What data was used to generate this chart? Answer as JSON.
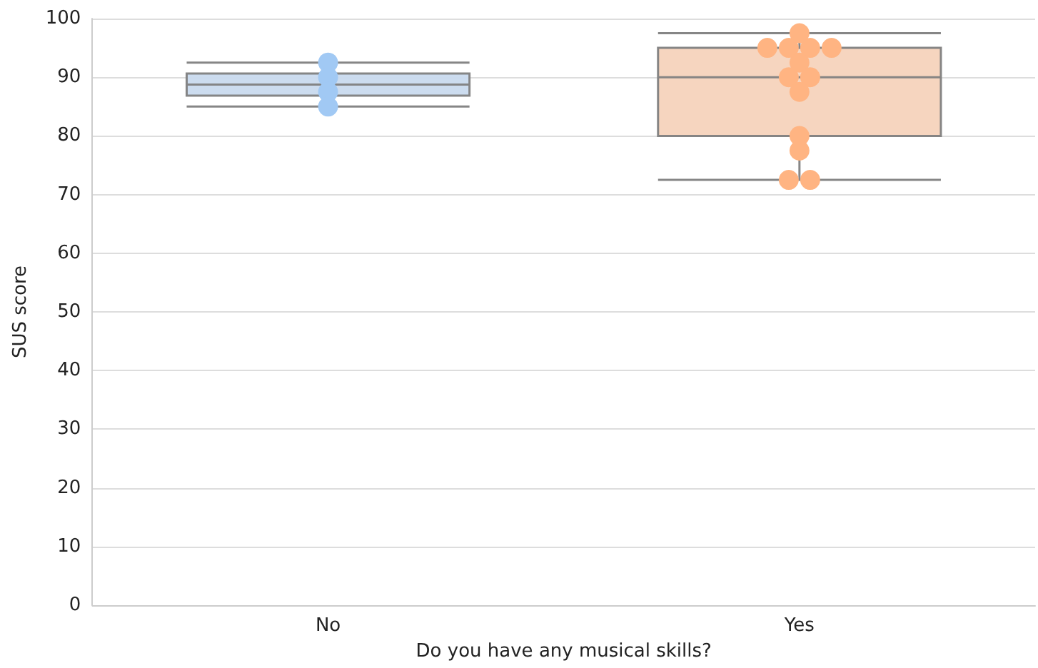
{
  "chart_data": {
    "type": "box",
    "xlabel": "Do you have any musical skills?",
    "ylabel": "SUS score",
    "categories": [
      "No",
      "Yes"
    ],
    "boxes": [
      {
        "low": 85,
        "q1": 86.875,
        "median": 88.75,
        "q3": 90.625,
        "high": 92.5
      },
      {
        "low": 72.5,
        "q1": 80,
        "median": 90,
        "q3": 95,
        "high": 97.5
      }
    ],
    "colors": [
      "#c9daee",
      "#f5d3bc"
    ],
    "series": [
      {
        "type": "scatter",
        "x": [
          "No",
          "No",
          "No",
          "No"
        ],
        "values": [
          92.5,
          90,
          87.5,
          85
        ],
        "color": "#a1c9f4"
      },
      {
        "type": "scatter",
        "x": [
          "Yes",
          "Yes",
          "Yes",
          "Yes",
          "Yes",
          "Yes",
          "Yes",
          "Yes",
          "Yes",
          "Yes",
          "Yes",
          "Yes",
          "Yes"
        ],
        "values": [
          97.5,
          95,
          95,
          95,
          95,
          92.5,
          90,
          90,
          87.5,
          80,
          77.5,
          72.5,
          72.5
        ],
        "color": "#ffb482"
      }
    ],
    "ylim": [
      0,
      100
    ],
    "yticks": [
      0,
      10,
      20,
      30,
      40,
      50,
      60,
      70,
      80,
      90,
      100
    ],
    "grid": "y",
    "marker": "circle"
  }
}
